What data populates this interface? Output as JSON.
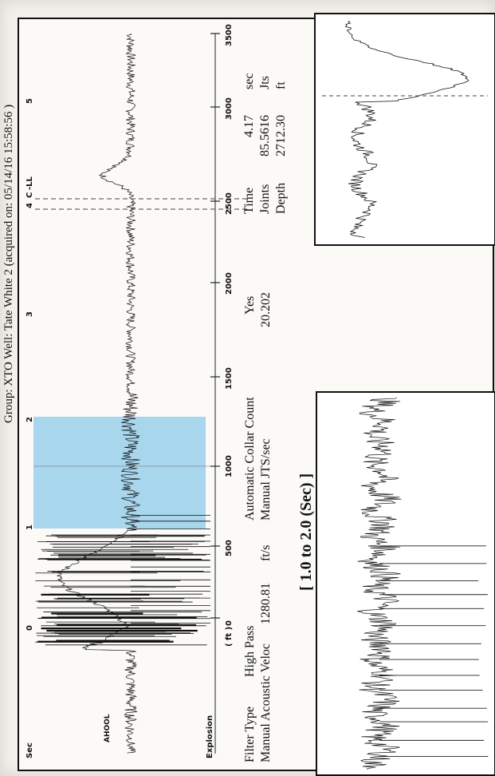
{
  "header": {
    "text": "Group: XTO     Well: Tate White 2 (acquired on: 05/14/16 15:58:56 )"
  },
  "main_trace": {
    "left_label": "Sec",
    "device_label": "AHOOL",
    "explosion_label": "Explosion",
    "axis_unit": "( ft )",
    "axis_ticks": [
      "0",
      "500",
      "1000",
      "1500",
      "2000",
      "2500",
      "3000",
      "3500"
    ],
    "time_markers": [
      "0",
      "1",
      "2",
      "3",
      "4",
      "5"
    ],
    "collar_markers": [
      "C",
      "-LL"
    ],
    "highlight_color": "#9fd2ec",
    "highlight_range_sec": [
      1.0,
      2.0
    ]
  },
  "params": {
    "filter_type_label": "Filter Type",
    "filter_type_value": "High Pass",
    "acoustic_label": "Manual Acoustic Veloc",
    "acoustic_value": "1280.81",
    "acoustic_unit": "ft/s",
    "auto_collar_label": "Automatic Collar Count",
    "auto_collar_value": "Yes",
    "manual_jts_label": "Manual JTS/sec",
    "manual_jts_value": "20.202",
    "time_label": "Time",
    "time_value": "4.17",
    "time_unit": "sec",
    "joints_label": "Joints",
    "joints_value": "85.5616",
    "joints_unit": "Jts",
    "depth_label": "Depth",
    "depth_value": "2712.30",
    "depth_unit": "ft"
  },
  "zoom_label": "[ 1.0  to  2.0 (Sec) ]"
}
